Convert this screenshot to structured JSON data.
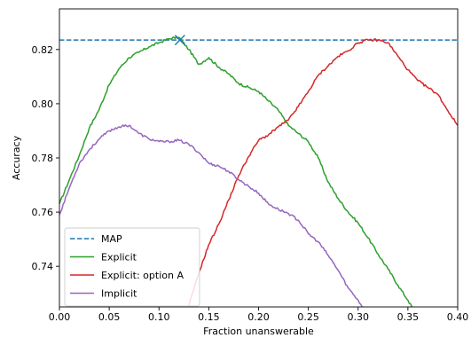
{
  "chart_data": {
    "type": "line",
    "title": "",
    "xlabel": "Fraction unanswerable",
    "ylabel": "Accuracy",
    "xlim": [
      0.0,
      0.4
    ],
    "ylim": [
      0.725,
      0.835
    ],
    "grid": false,
    "legend_position": "lower-left",
    "x_ticks": [
      0.0,
      0.05,
      0.1,
      0.15,
      0.2,
      0.25,
      0.3,
      0.35,
      0.4
    ],
    "x_tick_labels": [
      "0.00",
      "0.05",
      "0.10",
      "0.15",
      "0.20",
      "0.25",
      "0.30",
      "0.35",
      "0.40"
    ],
    "y_ticks": [
      0.74,
      0.76,
      0.78,
      0.8,
      0.82
    ],
    "y_tick_labels": [
      "0.74",
      "0.76",
      "0.78",
      "0.80",
      "0.82"
    ],
    "reference_lines": [
      {
        "name": "MAP",
        "y": 0.8235,
        "color": "#1f77b4",
        "style": "dashed"
      }
    ],
    "markers": [
      {
        "x": 0.121,
        "y": 0.8235,
        "symbol": "x",
        "color": "#1f77b4"
      }
    ],
    "series": [
      {
        "name": "Explicit",
        "color": "#2ca02c",
        "x": [
          0.0,
          0.01,
          0.02,
          0.03,
          0.04,
          0.05,
          0.06,
          0.07,
          0.08,
          0.09,
          0.1,
          0.11,
          0.12,
          0.13,
          0.14,
          0.15,
          0.16,
          0.17,
          0.18,
          0.19,
          0.2,
          0.21,
          0.22,
          0.23,
          0.24,
          0.25,
          0.26,
          0.27,
          0.28,
          0.29,
          0.3,
          0.31,
          0.32,
          0.33,
          0.34,
          0.35,
          0.354
        ],
        "y": [
          0.763,
          0.772,
          0.781,
          0.791,
          0.798,
          0.807,
          0.813,
          0.817,
          0.819,
          0.821,
          0.8225,
          0.824,
          0.8245,
          0.82,
          0.8145,
          0.817,
          0.8135,
          0.811,
          0.8075,
          0.806,
          0.8045,
          0.801,
          0.7975,
          0.792,
          0.789,
          0.786,
          0.78,
          0.771,
          0.765,
          0.76,
          0.756,
          0.7505,
          0.7445,
          0.739,
          0.733,
          0.7275,
          0.725
        ]
      },
      {
        "name": "Explicit: option A",
        "color": "#d62728",
        "x": [
          0.13,
          0.14,
          0.15,
          0.16,
          0.17,
          0.18,
          0.19,
          0.2,
          0.21,
          0.22,
          0.23,
          0.24,
          0.25,
          0.26,
          0.27,
          0.28,
          0.29,
          0.3,
          0.31,
          0.32,
          0.33,
          0.34,
          0.35,
          0.36,
          0.37,
          0.38,
          0.39,
          0.4
        ],
        "y": [
          0.7255,
          0.7375,
          0.748,
          0.7555,
          0.7645,
          0.7735,
          0.7805,
          0.7865,
          0.7885,
          0.7915,
          0.794,
          0.799,
          0.8045,
          0.8105,
          0.814,
          0.8175,
          0.8195,
          0.8225,
          0.8235,
          0.8235,
          0.8225,
          0.8175,
          0.8125,
          0.8085,
          0.806,
          0.8035,
          0.7975,
          0.792
        ]
      },
      {
        "name": "Implicit",
        "color": "#9467bd",
        "x": [
          0.0,
          0.01,
          0.02,
          0.03,
          0.04,
          0.05,
          0.06,
          0.07,
          0.08,
          0.09,
          0.1,
          0.11,
          0.12,
          0.13,
          0.14,
          0.15,
          0.16,
          0.17,
          0.18,
          0.19,
          0.2,
          0.21,
          0.22,
          0.23,
          0.24,
          0.25,
          0.26,
          0.27,
          0.28,
          0.29,
          0.3,
          0.304
        ],
        "y": [
          0.759,
          0.769,
          0.778,
          0.783,
          0.787,
          0.79,
          0.7915,
          0.792,
          0.789,
          0.787,
          0.786,
          0.786,
          0.7865,
          0.785,
          0.782,
          0.778,
          0.777,
          0.775,
          0.772,
          0.7695,
          0.767,
          0.763,
          0.761,
          0.7595,
          0.757,
          0.752,
          0.749,
          0.744,
          0.7385,
          0.732,
          0.7275,
          0.725
        ]
      }
    ]
  }
}
